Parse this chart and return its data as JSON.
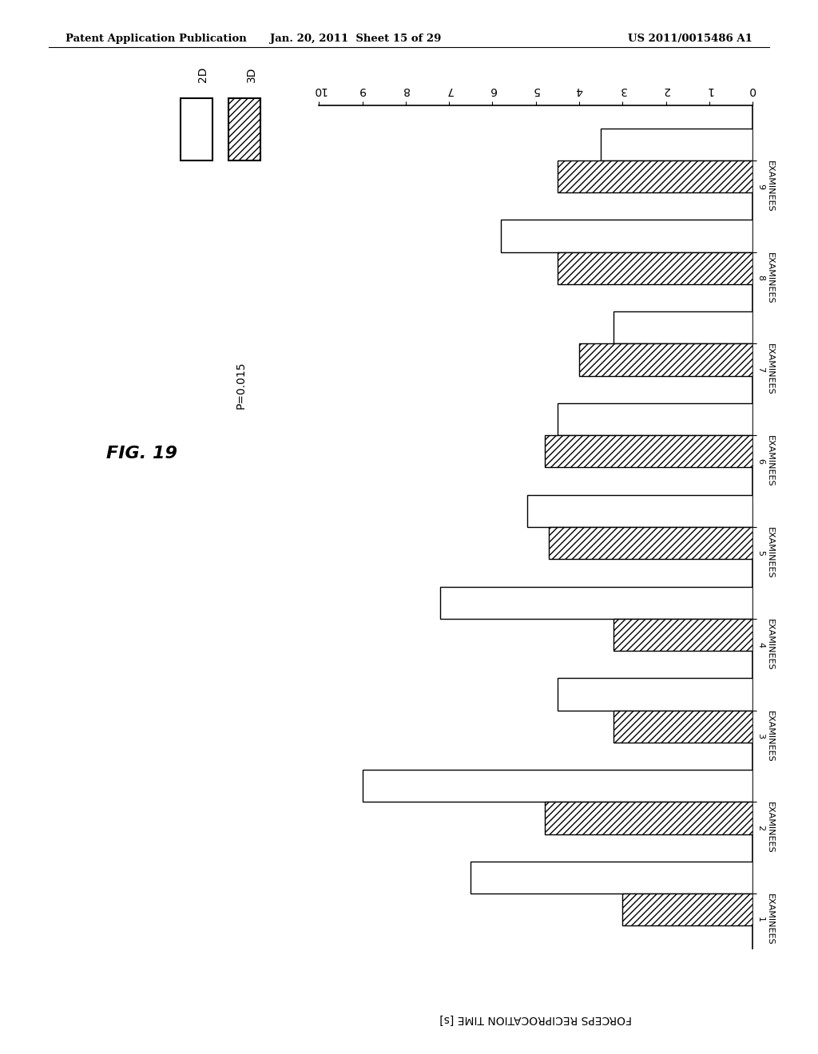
{
  "title": "FIG. 19",
  "header_left": "Patent Application Publication",
  "header_center": "Jan. 20, 2011  Sheet 15 of 29",
  "header_right": "US 2011/0015486 A1",
  "axis_label": "FORCEPS RECIPROCATION TIME [s]",
  "p_value": "P=0.015",
  "examinees": [
    "EXAMINEES\n1",
    "EXAMINEES\n2",
    "EXAMINEES\n3",
    "EXAMINEES\n4",
    "EXAMINEES\n5",
    "EXAMINEES\n6",
    "EXAMINEES\n7",
    "EXAMINEES\n8",
    "EXAMINEES\n9"
  ],
  "values_2D": [
    6.5,
    9.0,
    4.5,
    7.2,
    5.2,
    4.5,
    3.2,
    5.8,
    3.5
  ],
  "values_3D": [
    3.0,
    4.8,
    3.2,
    3.2,
    4.7,
    4.8,
    4.0,
    4.5,
    4.5
  ],
  "xlim": [
    0,
    10
  ],
  "xticks": [
    0,
    1,
    2,
    3,
    4,
    5,
    6,
    7,
    8,
    9,
    10
  ],
  "legend_2D": "2D",
  "legend_3D": "3D",
  "bar_height": 0.35,
  "background_color": "white"
}
